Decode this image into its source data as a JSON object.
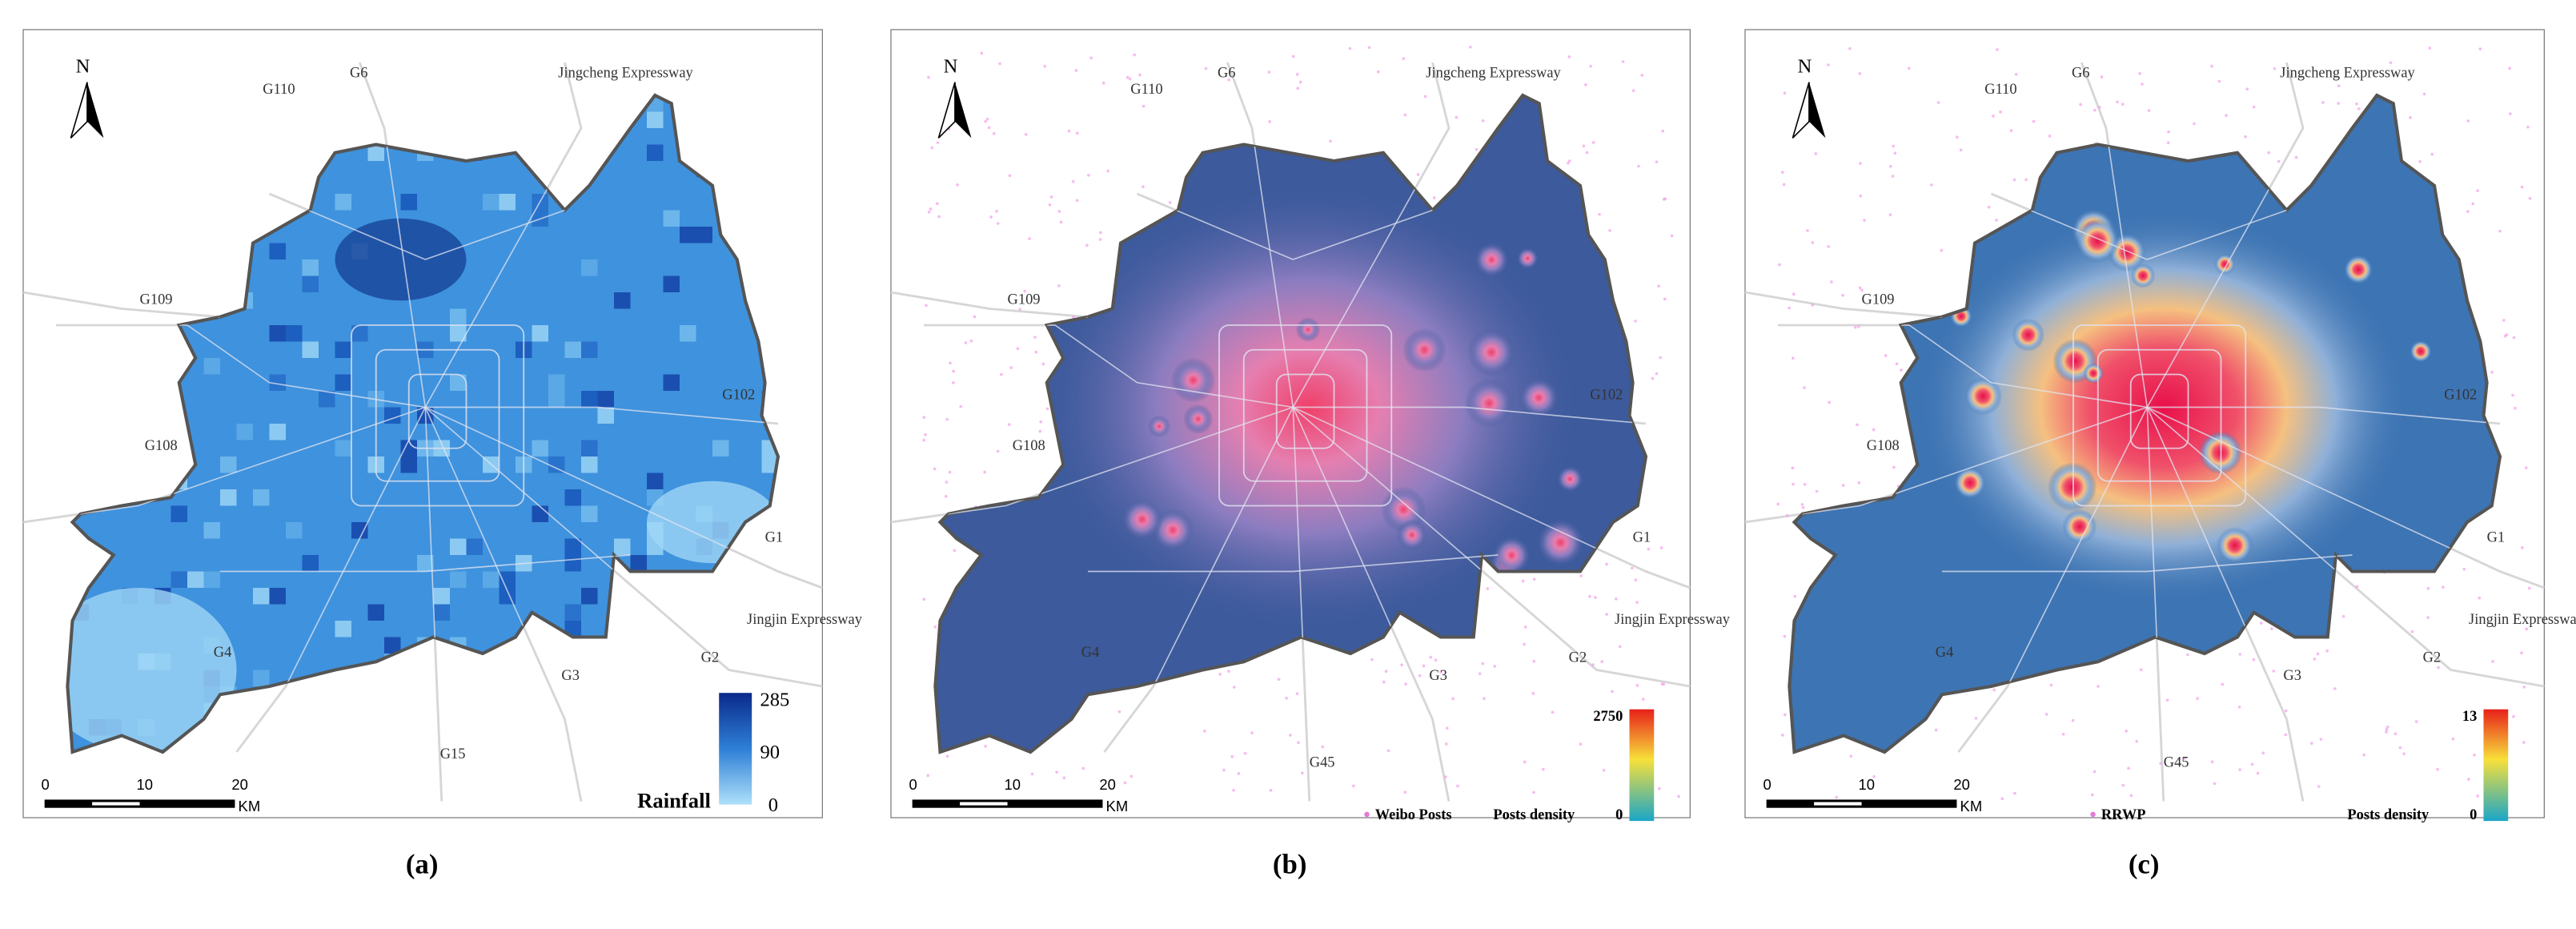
{
  "figure": {
    "panels": [
      {
        "caption": "(a)",
        "north": "N",
        "road_labels": [
          "G6",
          "G110",
          "Jingcheng Expressway",
          "G109",
          "G108",
          "G102",
          "G1",
          "Jingjin Expressway",
          "G2",
          "G3",
          "G4",
          "G15"
        ],
        "scale_bar": {
          "ticks": [
            "0",
            "10",
            "20"
          ],
          "unit": "KM"
        },
        "legend": {
          "title": "Rainfall",
          "max": "285",
          "mid": "90",
          "min": "0"
        }
      },
      {
        "caption": "(b)",
        "north": "N",
        "road_labels": [
          "G6",
          "G110",
          "Jingcheng Expressway",
          "G109",
          "G108",
          "G102",
          "G1",
          "Jingjin Expressway",
          "G2",
          "G3",
          "G4",
          "G45"
        ],
        "scale_bar": {
          "ticks": [
            "0",
            "10",
            "20"
          ],
          "unit": "KM"
        },
        "legend": {
          "points": "Weibo Posts",
          "title": "Posts density",
          "max": "2750",
          "min": "0"
        }
      },
      {
        "caption": "(c)",
        "north": "N",
        "road_labels": [
          "G6",
          "G110",
          "Jingcheng Expressway",
          "G109",
          "G108",
          "G102",
          "G1",
          "Jingjin Expressway",
          "G2",
          "G3",
          "G4",
          "G45"
        ],
        "scale_bar": {
          "ticks": [
            "0",
            "10",
            "20"
          ],
          "unit": "KM"
        },
        "legend": {
          "points": "RRWP",
          "title": "Posts density",
          "max": "13",
          "min": "0"
        }
      }
    ]
  }
}
